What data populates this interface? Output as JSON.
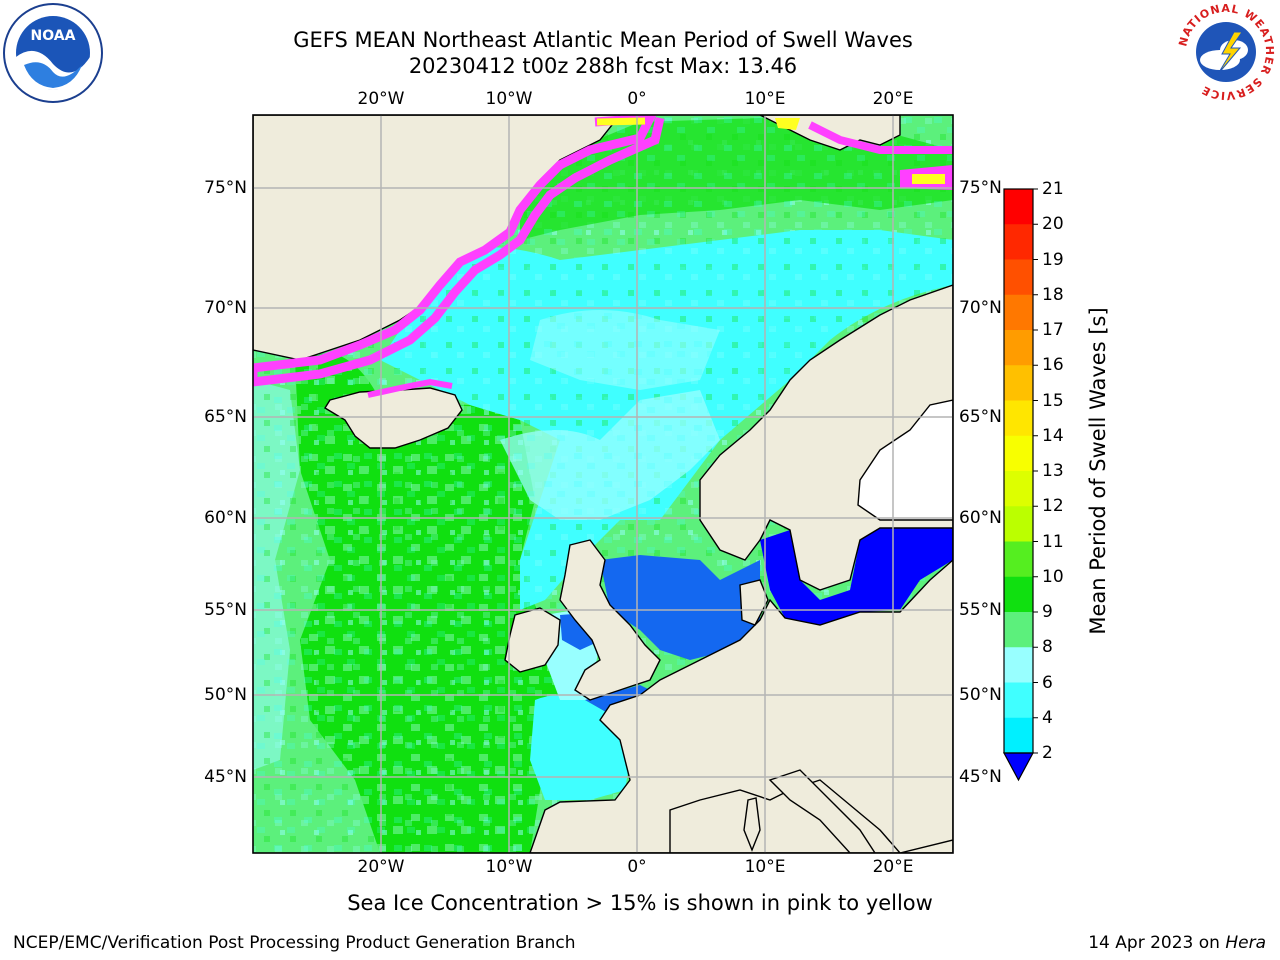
{
  "header": {
    "title_line1": "GEFS MEAN Northeast Atlantic Mean Period of Swell Waves",
    "title_line2": "20230412 t00z 288h fcst   Max: 13.46"
  },
  "map": {
    "lon_ticks": [
      "20°W",
      "10°W",
      "0°",
      "10°E",
      "20°E"
    ],
    "lat_ticks": [
      "75°N",
      "70°N",
      "65°N",
      "60°N",
      "55°N",
      "50°N",
      "45°N"
    ],
    "land_color": "#efecdc",
    "ocean_colors": {
      "green_band": "#10e010",
      "light_green": "#5cf07c",
      "cyan": "#40ffff",
      "light_cyan": "#98ffff",
      "blue": "#1468f0",
      "deep_blue": "#0000ff",
      "ice_pink": "#ff40ff",
      "ice_yellow": "#ffff20"
    }
  },
  "colorbar": {
    "label": "Mean Period of Swell Waves [s]",
    "ticks": [
      "21",
      "20",
      "19",
      "18",
      "17",
      "16",
      "15",
      "14",
      "13",
      "12",
      "11",
      "10",
      "9",
      "8",
      "6",
      "4",
      "2"
    ],
    "colors": [
      "#ff0000",
      "#ff2800",
      "#ff5000",
      "#ff7800",
      "#ff9c00",
      "#ffc000",
      "#ffe600",
      "#f8ff00",
      "#ddff00",
      "#bbff00",
      "#55ee20",
      "#10e010",
      "#5cf07c",
      "#98ffff",
      "#40ffff",
      "#00f0ff",
      "#1478ff",
      "#0000ff"
    ]
  },
  "footnote": "Sea Ice Concentration > 15% is shown in pink to yellow",
  "footer": {
    "left": "NCEP/EMC/Verification Post Processing Product Generation Branch",
    "date": "14 Apr 2023 on",
    "host": "Hera"
  },
  "logos": {
    "noaa": "NOAA",
    "nws_ring": "NATIONAL WEATHER SERVICE"
  }
}
